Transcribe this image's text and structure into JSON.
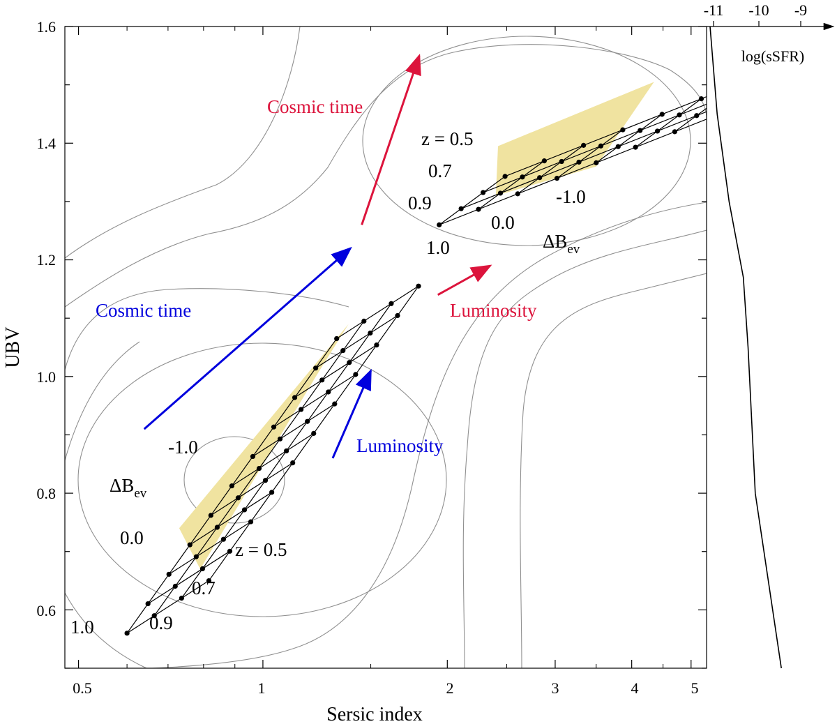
{
  "chart_data": {
    "type": "scatter",
    "xlabel": "Sersic index",
    "ylabel": "UBV",
    "xscale": "log",
    "xlim": [
      0.475,
      5.3
    ],
    "ylim": [
      0.5,
      1.6
    ],
    "x_ticks": [
      "0.5",
      "1",
      "2",
      "3",
      "4",
      "5"
    ],
    "y_ticks": [
      "0.6",
      "0.8",
      "1.0",
      "1.2",
      "1.4",
      "1.6"
    ],
    "side_axis": {
      "label": "log(sSFR)",
      "ticks": [
        "-11",
        "-10",
        "-9"
      ],
      "curve": [
        [
          -11.05,
          1.6
        ],
        [
          -10.9,
          1.45
        ],
        [
          -10.65,
          1.3
        ],
        [
          -10.35,
          1.17
        ],
        [
          -10.25,
          1.05
        ],
        [
          -10.1,
          0.8
        ],
        [
          -9.55,
          0.5
        ]
      ]
    },
    "colors": {
      "blue_cloud": "#0000dd",
      "red_sequence": "#dc143c",
      "band_fill": "#f0e3a0",
      "contour": "#909090"
    },
    "annotations": {
      "red_cosmic_time": "Cosmic time",
      "red_luminosity": "Luminosity",
      "blue_cosmic_time": "Cosmic time",
      "blue_luminosity": "Luminosity"
    },
    "arrows": [
      {
        "name": "red-cosmic-time",
        "color": "red",
        "from": [
          1.45,
          1.26
        ],
        "to": [
          1.8,
          1.55
        ]
      },
      {
        "name": "red-luminosity",
        "color": "red",
        "from": [
          1.93,
          1.14
        ],
        "to": [
          2.35,
          1.19
        ]
      },
      {
        "name": "blue-cosmic-time",
        "color": "blue",
        "from": [
          0.64,
          0.91
        ],
        "to": [
          1.39,
          1.22
        ]
      },
      {
        "name": "blue-luminosity",
        "color": "blue",
        "from": [
          1.3,
          0.86
        ],
        "to": [
          1.5,
          1.01
        ]
      }
    ],
    "grids": [
      {
        "name": "red-sequence",
        "z_labels": [
          "z = 0.5",
          "0.7",
          "0.9",
          "1.0"
        ],
        "dbev_labels": [
          "-1.0",
          "0.0"
        ],
        "dbev_title": "ΔB",
        "dbev_sub": "ev",
        "origin": [
          1.94,
          1.26
        ],
        "z_step": [
          1.086,
          0.0277
        ],
        "dbev_step": [
          1.159,
          0.0266
        ],
        "rows": 3,
        "cols": 8,
        "fill_polygon": [
          [
            2.42,
            1.395
          ],
          [
            4.35,
            1.505
          ],
          [
            3.5,
            1.36
          ],
          [
            2.4,
            1.31
          ]
        ]
      },
      {
        "name": "blue-cloud",
        "z_labels": [
          "z = 0.5",
          "0.7",
          "0.9",
          "1.0"
        ],
        "dbev_labels": [
          "-1.0",
          "0.0"
        ],
        "dbev_title": "ΔB",
        "dbev_sub": "ev",
        "origin": [
          0.6,
          0.56
        ],
        "z_step": [
          1.108,
          0.03
        ],
        "dbev_step": [
          1.082,
          0.0505
        ],
        "rows": 3,
        "cols": 10,
        "fill_polygon": [
          [
            0.73,
            0.74
          ],
          [
            1.38,
            1.09
          ],
          [
            1.22,
            1.0
          ],
          [
            0.79,
            0.67
          ]
        ]
      }
    ]
  }
}
